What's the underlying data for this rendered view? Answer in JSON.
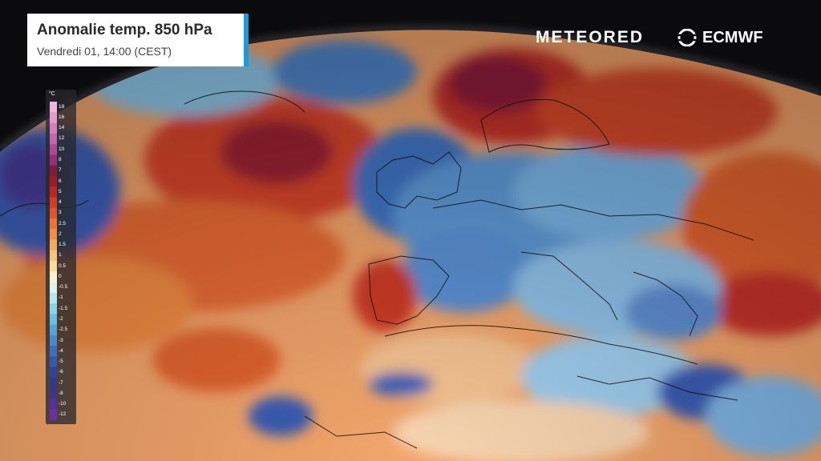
{
  "header": {
    "title": "Anomalie temp. 850 hPa",
    "subtitle": "Vendredi 01, 14:00 (CEST)"
  },
  "brands": {
    "meteored": "METEORED",
    "ecmwf": "ECMWF"
  },
  "legend": {
    "unit": "°C",
    "ticks": [
      "18",
      "16",
      "14",
      "12",
      "10",
      "8",
      "7",
      "6",
      "5",
      "4",
      "3",
      "2.5",
      "2",
      "1.5",
      "1",
      "0.5",
      "0",
      "-0.5",
      "-1",
      "-1.5",
      "-2",
      "-2.5",
      "-3",
      "-4",
      "-5",
      "-6",
      "-7",
      "-8",
      "-10",
      "-12"
    ],
    "colors": [
      "#f2b3dc",
      "#e59ad0",
      "#d57fc0",
      "#c464ac",
      "#ad4a92",
      "#933076",
      "#7d1f3c",
      "#9d1b24",
      "#bb2523",
      "#d23b24",
      "#e0562c",
      "#ea7435",
      "#f18d45",
      "#f5a95c",
      "#f7c27b",
      "#f9db9c",
      "#fbf0cf",
      "#d9f3f0",
      "#b4e7ef",
      "#8fd5ea",
      "#6fbde3",
      "#58a3d8",
      "#4a89cb",
      "#3c6fbc",
      "#3259aa",
      "#2d4596",
      "#333a8a",
      "#40348a",
      "#56309a",
      "#6b2fa6"
    ]
  },
  "colors": {
    "accent": "#1e9bd7",
    "background": "#0b0b0d"
  }
}
